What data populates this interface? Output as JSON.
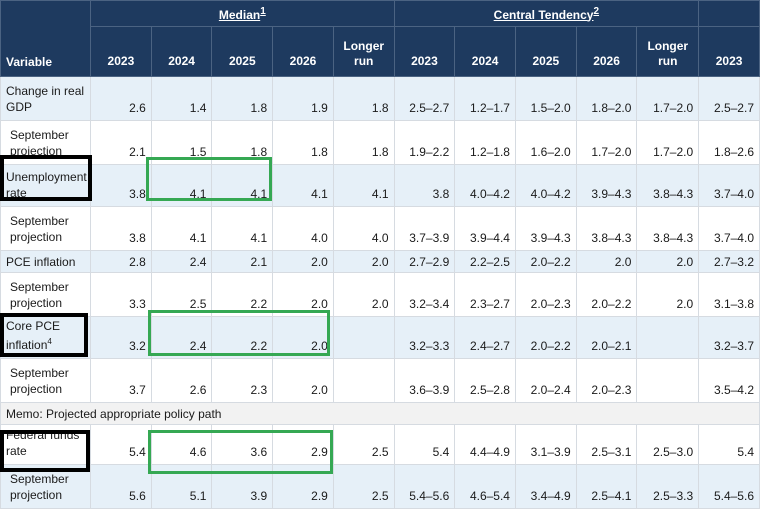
{
  "header": {
    "variable": "Variable",
    "median": "Median",
    "median_note": "1",
    "central_tendency": "Central Tendency",
    "central_tendency_note": "2",
    "col_2023": "2023",
    "col_2024": "2024",
    "col_2025": "2025",
    "col_2026": "2026",
    "longer_run_1": "Longer",
    "longer_run_2": "run"
  },
  "memo": "Memo: Projected appropriate policy path",
  "rows": [
    {
      "label": [
        "Change in real",
        "GDP"
      ],
      "median": [
        "2.6",
        "1.4",
        "1.8",
        "1.9",
        "1.8"
      ],
      "ct": [
        "2.5–2.7",
        "1.2–1.7",
        "1.5–2.0",
        "1.8–2.0",
        "1.7–2.0",
        "2.5–2.7"
      ]
    },
    {
      "label": [
        "September",
        "projection"
      ],
      "median": [
        "2.1",
        "1.5",
        "1.8",
        "1.8",
        "1.8"
      ],
      "ct": [
        "1.9–2.2",
        "1.2–1.8",
        "1.6–2.0",
        "1.7–2.0",
        "1.7–2.0",
        "1.8–2.6"
      ]
    },
    {
      "label": [
        "Unemployment",
        "rate"
      ],
      "median": [
        "3.8",
        "4.1",
        "4.1",
        "4.1",
        "4.1"
      ],
      "ct": [
        "3.8",
        "4.0–4.2",
        "4.0–4.2",
        "3.9–4.3",
        "3.8–4.3",
        "3.7–4.0"
      ]
    },
    {
      "label": [
        "September",
        "projection"
      ],
      "median": [
        "3.8",
        "4.1",
        "4.1",
        "4.0",
        "4.0"
      ],
      "ct": [
        "3.7–3.9",
        "3.9–4.4",
        "3.9–4.3",
        "3.8–4.3",
        "3.8–4.3",
        "3.7–4.0"
      ]
    },
    {
      "label": [
        "PCE inflation",
        ""
      ],
      "median": [
        "2.8",
        "2.4",
        "2.1",
        "2.0",
        "2.0"
      ],
      "ct": [
        "2.7–2.9",
        "2.2–2.5",
        "2.0–2.2",
        "2.0",
        "2.0",
        "2.7–3.2"
      ]
    },
    {
      "label": [
        "September",
        "projection"
      ],
      "median": [
        "3.3",
        "2.5",
        "2.2",
        "2.0",
        "2.0"
      ],
      "ct": [
        "3.2–3.4",
        "2.3–2.7",
        "2.0–2.3",
        "2.0–2.2",
        "2.0",
        "3.1–3.8"
      ]
    },
    {
      "label": [
        "Core PCE",
        "inflation"
      ],
      "label_note": "4",
      "median": [
        "3.2",
        "2.4",
        "2.2",
        "2.0",
        ""
      ],
      "ct": [
        "3.2–3.3",
        "2.4–2.7",
        "2.0–2.2",
        "2.0–2.1",
        "",
        "3.2–3.7"
      ]
    },
    {
      "label": [
        "September",
        "projection"
      ],
      "median": [
        "3.7",
        "2.6",
        "2.3",
        "2.0",
        ""
      ],
      "ct": [
        "3.6–3.9",
        "2.5–2.8",
        "2.0–2.4",
        "2.0–2.3",
        "",
        "3.5–4.2"
      ]
    },
    {
      "label": [
        "Federal funds",
        "rate"
      ],
      "median": [
        "5.4",
        "4.6",
        "3.6",
        "2.9",
        "2.5"
      ],
      "ct": [
        "5.4",
        "4.4–4.9",
        "3.1–3.9",
        "2.5–3.1",
        "2.5–3.0",
        "5.4"
      ]
    },
    {
      "label": [
        "September",
        "projection"
      ],
      "median": [
        "5.6",
        "5.1",
        "3.9",
        "2.9",
        "2.5"
      ],
      "ct": [
        "5.4–5.6",
        "4.6–5.4",
        "3.4–4.9",
        "2.5–4.1",
        "2.5–3.3",
        "5.4–5.6"
      ]
    }
  ],
  "highlight_colors": {
    "black": "#000000",
    "green": "#35a853"
  }
}
